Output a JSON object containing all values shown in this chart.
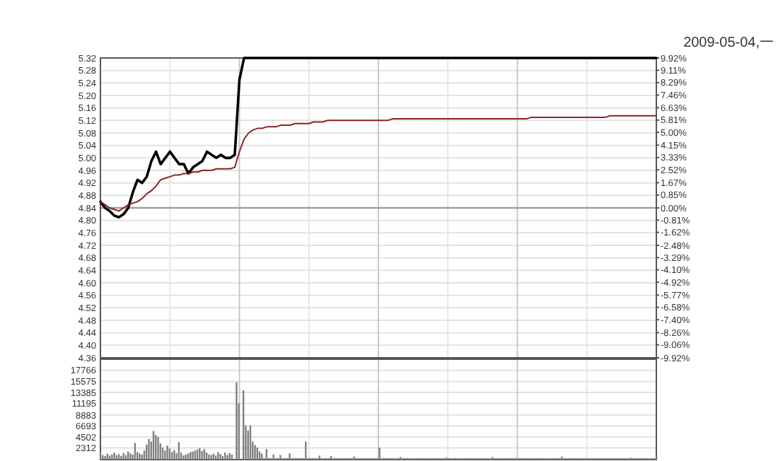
{
  "chart_data": [
    {
      "type": "line",
      "annotations": [
        "2009-05-04,一"
      ],
      "categories": [
        null,
        null,
        null,
        null,
        null,
        null,
        null,
        null,
        null,
        null,
        null,
        null,
        null,
        null,
        null,
        null,
        null,
        null,
        null,
        null,
        null,
        null,
        null,
        null,
        null,
        null,
        null,
        null,
        null,
        null,
        null,
        null,
        null,
        null,
        null,
        null,
        null,
        null,
        null,
        null,
        null,
        null,
        null,
        null,
        null,
        null,
        null,
        null,
        null,
        null,
        null,
        null,
        null,
        null,
        null,
        null,
        null,
        null,
        null,
        null,
        null,
        null,
        null,
        null,
        null,
        null,
        null,
        null,
        null,
        null,
        null,
        null,
        null,
        null,
        null,
        null,
        null,
        null,
        null,
        null,
        null,
        null,
        null,
        null,
        null,
        null,
        null,
        null,
        null,
        null,
        null,
        null,
        null,
        null,
        null,
        null,
        null,
        null,
        null,
        null,
        null,
        null,
        null,
        null,
        null,
        null,
        null,
        null,
        null,
        null,
        null,
        null,
        null,
        null,
        null,
        null,
        null,
        null,
        null,
        null,
        null
      ],
      "ylim": [
        4.36,
        5.32
      ],
      "yticks": [
        4.36,
        {
          "value": 4.4,
          "label": "4.40"
        },
        4.44,
        4.48,
        4.52,
        4.56,
        {
          "value": 4.6,
          "label": "4.60"
        },
        4.64,
        4.68,
        4.72,
        4.76,
        {
          "value": 4.8,
          "label": "4.80"
        },
        4.84,
        4.88,
        4.92,
        4.96,
        {
          "value": 5.0,
          "label": "5.00"
        },
        5.04,
        5.08,
        5.12,
        5.16,
        {
          "value": 5.2,
          "label": "5.20"
        },
        5.24,
        5.28,
        5.32
      ],
      "y2lim": [
        -9.92,
        9.92
      ],
      "y2ticks": [
        {
          "value": -9.92,
          "label": "-9.92%"
        },
        {
          "value": -9.06,
          "label": "-9.06%"
        },
        {
          "value": -8.26,
          "label": "-8.26%"
        },
        {
          "value": -7.4,
          "label": "-7.40%"
        },
        {
          "value": -6.58,
          "label": "-6.58%"
        },
        {
          "value": -5.77,
          "label": "-5.77%"
        },
        {
          "value": -4.92,
          "label": "-4.92%"
        },
        {
          "value": -4.1,
          "label": "-4.10%"
        },
        {
          "value": -3.29,
          "label": "-3.29%"
        },
        {
          "value": -2.48,
          "label": "-2.48%"
        },
        {
          "value": -1.62,
          "label": "-1.62%"
        },
        {
          "value": -0.81,
          "label": "-0.81%"
        },
        {
          "value": 0,
          "label": "0.00%"
        },
        {
          "value": 0.85,
          "label": "0.85%"
        },
        {
          "value": 1.67,
          "label": "1.67%"
        },
        {
          "value": 2.52,
          "label": "2.52%"
        },
        {
          "value": 3.33,
          "label": "3.33%"
        },
        {
          "value": 4.15,
          "label": "4.15%"
        },
        {
          "value": 5.0,
          "label": "5.00%"
        },
        {
          "value": 5.81,
          "label": "5.81%"
        },
        {
          "value": 6.63,
          "label": "6.63%"
        },
        {
          "value": 7.46,
          "label": "7.46%"
        },
        {
          "value": 8.29,
          "label": "8.29%"
        },
        {
          "value": 9.11,
          "label": "9.11%"
        },
        {
          "value": 9.92,
          "label": "9.92%"
        }
      ],
      "grid": true,
      "ref_lines": [
        {
          "axis": "y",
          "value": 4.84,
          "color": "#a0a0a0"
        }
      ],
      "series": [
        {
          "color": "#000000",
          "values": [
            4.86,
            4.84,
            4.83,
            4.815,
            4.81,
            4.82,
            4.84,
            4.89,
            4.93,
            4.92,
            4.94,
            4.99,
            5.02,
            4.98,
            5.0,
            5.02,
            5.0,
            4.98,
            4.98,
            4.95,
            4.97,
            4.98,
            4.99,
            5.02,
            5.01,
            5.0,
            5.01,
            5.0,
            5.0,
            5.01,
            5.25,
            5.32,
            5.32,
            5.32,
            5.32,
            5.32,
            5.32,
            5.32,
            5.32,
            5.32,
            5.32,
            5.32,
            5.32,
            5.32,
            5.32,
            5.32,
            5.32,
            5.32,
            5.32,
            5.32,
            5.32,
            5.32,
            5.32,
            5.32,
            5.32,
            5.32,
            5.32,
            5.32,
            5.32,
            5.32,
            5.32,
            5.32,
            5.32,
            5.32,
            5.32,
            5.32,
            5.32,
            5.32,
            5.32,
            5.32,
            5.32,
            5.32,
            5.32,
            5.32,
            5.32,
            5.32,
            5.32,
            5.32,
            5.32,
            5.32,
            5.32,
            5.32,
            5.32,
            5.32,
            5.32,
            5.32,
            5.32,
            5.32,
            5.32,
            5.32,
            5.32,
            5.32,
            5.32,
            5.32,
            5.32,
            5.32,
            5.32,
            5.32,
            5.32,
            5.32,
            5.32,
            5.32,
            5.32,
            5.32,
            5.32,
            5.32,
            5.32,
            5.32,
            5.32,
            5.32,
            5.32,
            5.32,
            5.32,
            5.32,
            5.32,
            5.32,
            5.32,
            5.32,
            5.32,
            5.32,
            5.32
          ]
        },
        {
          "color": "#8b2323",
          "values": [
            4.86,
            4.85,
            4.84,
            4.835,
            4.83,
            4.84,
            4.85,
            4.855,
            4.86,
            4.87,
            4.885,
            4.895,
            4.91,
            4.93,
            4.935,
            4.94,
            4.945,
            4.945,
            4.95,
            4.95,
            4.955,
            4.955,
            4.96,
            4.96,
            4.96,
            4.965,
            4.965,
            4.965,
            4.965,
            4.97,
            5.02,
            5.06,
            5.08,
            5.09,
            5.095,
            5.095,
            5.1,
            5.1,
            5.1,
            5.105,
            5.105,
            5.105,
            5.11,
            5.11,
            5.11,
            5.11,
            5.115,
            5.115,
            5.115,
            5.12,
            5.12,
            5.12,
            5.12,
            5.12,
            5.12,
            5.12,
            5.12,
            5.12,
            5.12,
            5.12,
            5.12,
            5.12,
            5.12,
            5.125,
            5.125,
            5.125,
            5.125,
            5.125,
            5.125,
            5.125,
            5.125,
            5.125,
            5.125,
            5.125,
            5.125,
            5.125,
            5.125,
            5.125,
            5.125,
            5.125,
            5.125,
            5.125,
            5.125,
            5.125,
            5.125,
            5.125,
            5.125,
            5.125,
            5.125,
            5.125,
            5.125,
            5.125,
            5.125,
            5.13,
            5.13,
            5.13,
            5.13,
            5.13,
            5.13,
            5.13,
            5.13,
            5.13,
            5.13,
            5.13,
            5.13,
            5.13,
            5.13,
            5.13,
            5.13,
            5.13,
            5.135,
            5.135,
            5.135,
            5.135,
            5.135,
            5.135,
            5.135,
            5.135,
            5.135,
            5.135,
            5.135
          ]
        }
      ]
    },
    {
      "type": "bar",
      "categories": [
        null,
        null,
        null,
        null,
        null,
        null,
        null,
        null,
        null,
        null,
        null,
        null,
        null,
        null,
        null,
        null,
        null,
        null,
        null,
        null,
        null,
        null,
        null,
        null,
        null,
        null,
        null,
        null,
        null,
        null,
        null,
        null,
        null,
        null,
        null,
        null,
        null,
        null,
        null,
        null,
        null,
        null,
        null,
        null,
        null,
        null,
        null,
        null,
        null,
        null,
        null,
        null,
        null,
        null,
        null,
        null,
        null,
        null,
        null,
        null,
        null,
        null,
        null,
        null,
        null,
        null,
        null,
        null,
        null,
        null,
        null,
        null,
        null,
        null,
        null,
        null,
        null,
        null,
        null,
        null,
        null,
        null,
        null,
        null,
        null,
        null,
        null,
        null,
        null,
        null,
        null,
        null,
        null,
        null,
        null,
        null,
        null,
        null,
        null,
        null,
        null,
        null,
        null,
        null,
        null,
        null,
        null,
        null,
        null,
        null,
        null,
        null,
        null,
        null,
        null,
        null,
        null,
        null,
        null,
        null,
        null,
        null,
        null,
        null,
        null,
        null,
        null,
        null,
        null,
        null,
        null,
        null,
        null,
        null,
        null,
        null,
        null,
        null,
        null,
        null,
        null,
        null,
        null,
        null,
        null,
        null,
        null,
        null,
        null,
        null,
        null,
        null,
        null,
        null,
        null,
        null,
        null,
        null,
        null,
        null,
        null,
        null,
        null,
        null,
        null,
        null,
        null,
        null,
        null,
        null,
        null,
        null,
        null,
        null,
        null,
        null,
        null,
        null,
        null,
        null,
        null,
        null,
        null,
        null,
        null,
        null,
        null,
        null,
        null,
        null,
        null,
        null,
        null,
        null,
        null,
        null,
        null,
        null,
        null,
        null,
        null,
        null,
        null,
        null,
        null,
        null,
        null,
        null,
        null,
        null,
        null,
        null,
        null,
        null,
        null,
        null,
        null,
        null,
        null,
        null,
        null,
        null,
        null,
        null,
        null,
        null,
        null,
        null,
        null,
        null,
        null,
        null,
        null,
        null,
        null,
        null,
        null,
        null,
        null,
        null,
        null,
        null
      ],
      "ylim": [
        0,
        20000
      ],
      "yticks": [
        2312,
        4502,
        6693,
        8883,
        11195,
        13385,
        15575,
        17766
      ],
      "grid": true,
      "series": [
        {
          "color": "#808080",
          "values": [
            1500,
            900,
            700,
            1200,
            800,
            1000,
            1400,
            900,
            1100,
            700,
            1300,
            900,
            1600,
            1200,
            1000,
            3300,
            1500,
            1200,
            1000,
            1800,
            3000,
            4100,
            3600,
            5700,
            4900,
            4500,
            3200,
            2400,
            1800,
            2800,
            2200,
            1500,
            1900,
            1300,
            3500,
            1400,
            800,
            1000,
            1200,
            1500,
            1600,
            1800,
            2000,
            2300,
            1700,
            2100,
            1400,
            1000,
            900,
            1200,
            800,
            1500,
            1100,
            700,
            1400,
            900,
            1300,
            1000,
            null,
            15400,
            11200,
            null,
            13800,
            6800,
            5800,
            6800,
            3600,
            2900,
            2400,
            1600,
            1200,
            300,
            2100,
            300,
            300,
            1000,
            300,
            300,
            900,
            300,
            300,
            300,
            1200,
            300,
            300,
            300,
            300,
            300,
            300,
            3600,
            300,
            300,
            300,
            300,
            300,
            800,
            300,
            300,
            300,
            300,
            700,
            300,
            300,
            300,
            300,
            300,
            300,
            300,
            300,
            300,
            600,
            300,
            300,
            300,
            300,
            300,
            300,
            300,
            300,
            300,
            300,
            2400,
            300,
            300,
            300,
            300,
            300,
            300,
            300,
            300,
            500,
            300,
            300,
            300,
            300,
            300,
            300,
            300,
            300,
            300,
            300,
            300,
            300,
            300,
            300,
            300,
            300,
            300,
            300,
            300,
            400,
            300,
            300,
            300,
            300,
            300,
            300,
            300,
            300,
            300,
            300,
            300,
            300,
            300,
            300,
            300,
            300,
            300,
            300,
            300,
            500,
            300,
            300,
            300,
            300,
            300,
            300,
            300,
            300,
            300,
            300,
            300,
            300,
            300,
            300,
            300,
            300,
            300,
            300,
            300,
            300,
            300,
            300,
            300,
            300,
            300,
            300,
            300,
            300,
            300,
            600,
            300,
            300,
            300,
            300,
            300,
            300,
            300,
            300,
            300,
            300,
            300,
            300,
            300,
            300,
            300,
            300,
            300,
            300,
            300,
            300,
            300,
            300,
            300,
            300,
            300,
            300,
            300,
            300,
            300,
            400,
            300,
            300,
            300,
            300,
            300,
            300,
            300,
            300,
            300,
            300,
            300
          ]
        }
      ]
    }
  ]
}
